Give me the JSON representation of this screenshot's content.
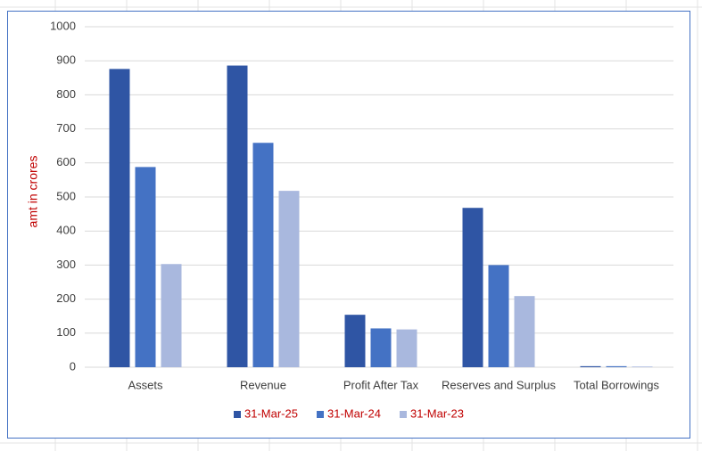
{
  "chart_data": {
    "type": "bar",
    "y_label": "amt in crores",
    "categories": [
      "Assets",
      "Revenue",
      "Profit After Tax",
      "Reserves and Surplus",
      "Total Borrowings"
    ],
    "series": [
      {
        "name": "31-Mar-25",
        "color": "#2f55a4",
        "values": [
          876,
          886,
          154,
          468,
          3
        ]
      },
      {
        "name": "31-Mar-24",
        "color": "#4472c4",
        "values": [
          588,
          659,
          114,
          300,
          3
        ]
      },
      {
        "name": "31-Mar-23",
        "color": "#a9b8de",
        "values": [
          303,
          518,
          111,
          209,
          2
        ]
      }
    ],
    "ylim": [
      0,
      1000
    ],
    "yticks": [
      0,
      100,
      200,
      300,
      400,
      500,
      600,
      700,
      800,
      900,
      1000
    ],
    "grid": true,
    "legend": "bottom",
    "label_color": "#c00000"
  }
}
